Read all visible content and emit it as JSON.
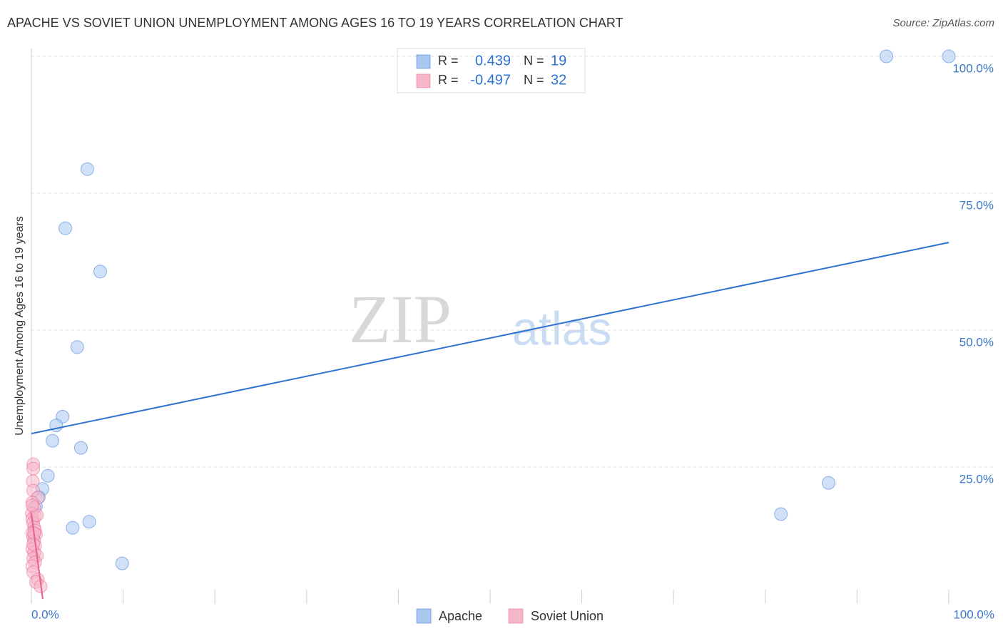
{
  "chart_data": {
    "type": "scatter",
    "title": "APACHE VS SOVIET UNION UNEMPLOYMENT AMONG AGES 16 TO 19 YEARS CORRELATION CHART",
    "source": "Source: ZipAtlas.com",
    "y_label": "Unemployment Among Ages 16 to 19 years",
    "watermark": [
      "ZIP",
      "atlas"
    ],
    "legend_labels": {
      "r": "R =",
      "n": "N ="
    },
    "xlim": [
      0,
      100
    ],
    "ylim": [
      0,
      100
    ],
    "xticks": [
      {
        "value": 0,
        "label": "0.0%"
      },
      {
        "value": 100,
        "label": "100.0%"
      }
    ],
    "xminor_ticks": [
      10,
      20,
      30,
      40,
      50,
      60,
      70,
      80,
      90
    ],
    "yticks": [
      {
        "value": 25,
        "label": "25.0%"
      },
      {
        "value": 50,
        "label": "50.0%"
      },
      {
        "value": 75,
        "label": "75.0%"
      },
      {
        "value": 100,
        "label": "100.0%"
      }
    ],
    "grid": true,
    "series": [
      {
        "name": "Apache",
        "color": "#a9c8f0",
        "line_color": "#2e72d2",
        "r": 0.439,
        "n": 19,
        "x": [
          93.2,
          100,
          6.1,
          3.7,
          7.5,
          5.0,
          3.4,
          2.7,
          2.3,
          5.4,
          1.8,
          1.2,
          0.8,
          0.5,
          4.5,
          6.3,
          9.9,
          81.7,
          86.9
        ],
        "values": [
          100,
          100,
          79.4,
          68.6,
          60.7,
          46.9,
          34.2,
          32.6,
          29.8,
          28.5,
          23.4,
          21.0,
          19.5,
          17.8,
          13.9,
          15.0,
          7.4,
          16.4,
          22.1
        ],
        "trend_x": [
          0,
          100
        ],
        "trend_y": [
          31.1,
          66.0
        ]
      },
      {
        "name": "Soviet Union",
        "color": "#f5b7c8",
        "line_color": "#e8608a",
        "r": -0.497,
        "n": 32,
        "x": [
          0.2,
          0.2,
          0.15,
          0.2,
          0.7,
          0.1,
          0.3,
          0.05,
          0.4,
          0.1,
          0.2,
          0.3,
          0.4,
          0.1,
          0.5,
          0.2,
          0.3,
          0.4,
          0.1,
          0.3,
          0.6,
          0.2,
          0.4,
          0.1,
          0.2,
          0.7,
          0.5,
          1.0,
          0.3,
          0.6,
          0.1,
          0.2
        ],
        "values": [
          25.5,
          24.7,
          22.4,
          20.7,
          19.4,
          18.5,
          17.6,
          16.5,
          16.0,
          15.5,
          14.8,
          14.0,
          13.4,
          13.0,
          12.7,
          12.2,
          11.5,
          10.6,
          10.0,
          9.4,
          8.8,
          8.3,
          7.6,
          6.9,
          5.8,
          4.5,
          4.0,
          3.2,
          12.9,
          16.2,
          18.0,
          10.9
        ],
        "trend_x": [
          0,
          1.24
        ],
        "trend_y": [
          16.5,
          0.9
        ]
      }
    ]
  }
}
